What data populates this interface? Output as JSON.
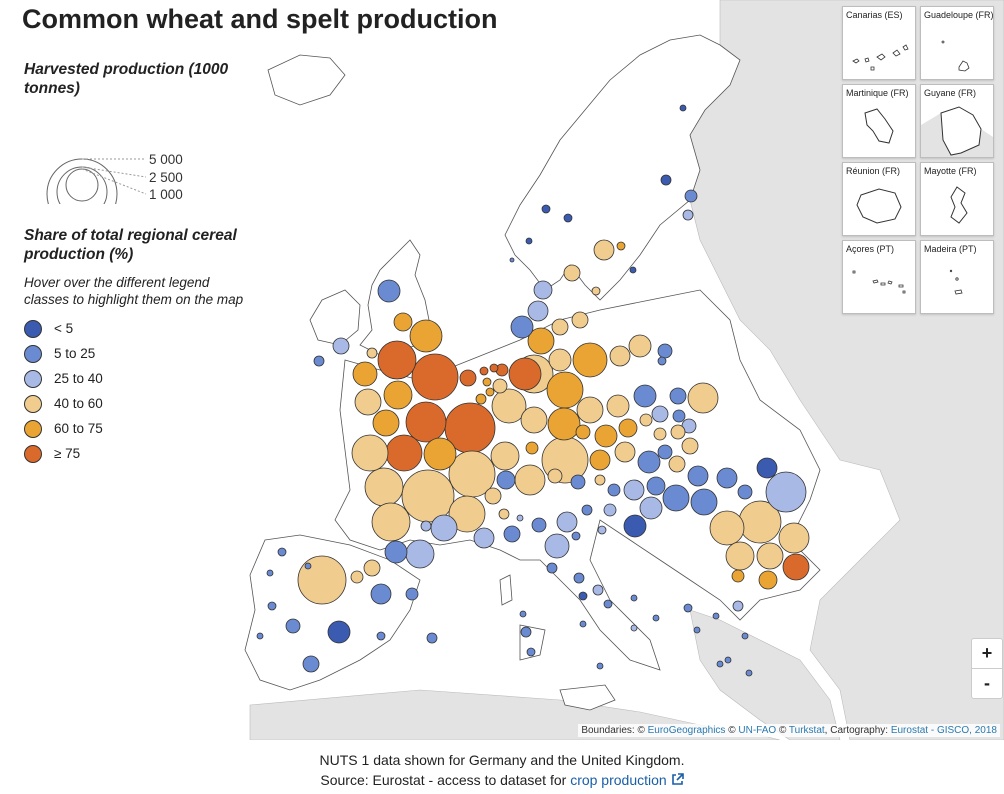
{
  "title": "Common wheat and spelt production",
  "size_legend": {
    "title": "Harvested production (1000 tonnes)",
    "labels": [
      "5 000",
      "2 500",
      "1 000"
    ]
  },
  "share_legend": {
    "title": "Share of total regional cereal production (%)",
    "hint": "Hover over the different legend classes to highlight them on the map",
    "classes": [
      {
        "label": "< 5",
        "color": "#3a5bb0"
      },
      {
        "label": "5 to 25",
        "color": "#6a8ad2"
      },
      {
        "label": "25 to 40",
        "color": "#a9b9e6"
      },
      {
        "label": "40 to 60",
        "color": "#f1cc8f"
      },
      {
        "label": "60 to 75",
        "color": "#e9a434"
      },
      {
        "label": "≥ 75",
        "color": "#d96a2b"
      }
    ]
  },
  "insets": [
    {
      "name": "Canarias (ES)"
    },
    {
      "name": "Guadeloupe (FR)"
    },
    {
      "name": "Martinique (FR)"
    },
    {
      "name": "Guyane (FR)"
    },
    {
      "name": "Réunion (FR)"
    },
    {
      "name": "Mayotte (FR)"
    },
    {
      "name": "Açores (PT)"
    },
    {
      "name": "Madeira (PT)"
    }
  ],
  "zoom": {
    "in": "+",
    "out": "-"
  },
  "attribution": {
    "prefix": "Boundaries: ©",
    "eurogeo": "EuroGeographics",
    "copy1": "©",
    "unfao": "UN-FAO",
    "copy2": "©",
    "turkstat": "Turkstat",
    "carto": ", Cartography:",
    "gisco": "Eurostat - GISCO, 2018"
  },
  "footer": {
    "note": "NUTS 1 data shown for Germany and the United Kingdom.",
    "source_prefix": "Source: Eurostat - access to dataset for",
    "source_link": "crop production"
  },
  "colors": {
    "land": "#ffffff",
    "nonEU": "#e3e3e3",
    "sea": "#ffffff",
    "border": "#888888"
  }
}
